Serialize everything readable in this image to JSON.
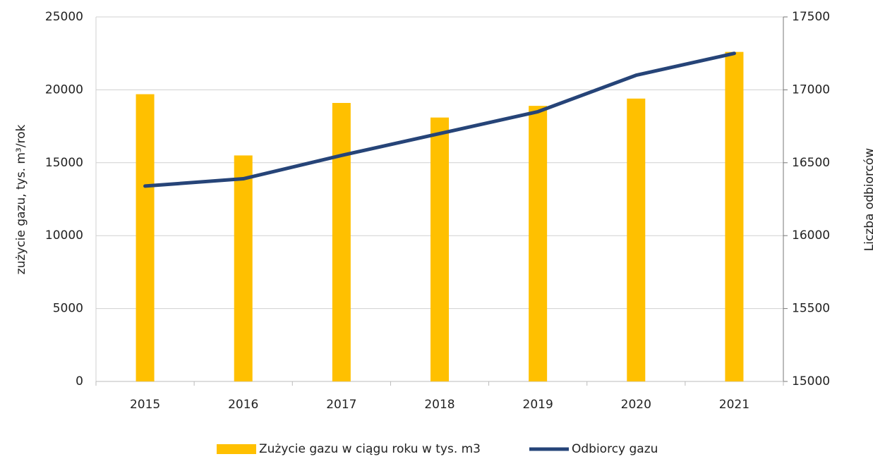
{
  "chart_data": {
    "type": "bar_line",
    "categories": [
      "2015",
      "2016",
      "2017",
      "2018",
      "2019",
      "2020",
      "2021"
    ],
    "series": [
      {
        "name": "Zużycie gazu w ciągu roku w tys. m3",
        "color": "#ffc000",
        "type": "bar",
        "values": [
          19700,
          15500,
          19100,
          18100,
          18900,
          19400,
          22600
        ]
      },
      {
        "name": "Odbiorcy gazu",
        "color": "#264478",
        "type": "line",
        "axis": "y2",
        "values": [
          16340,
          16390,
          16550,
          16700,
          16850,
          17100,
          17250
        ]
      }
    ],
    "ylabel": "zużycie gazu, tys. m³/rok",
    "y2label": "Liczba odbiorców",
    "ylim": [
      0,
      25000
    ],
    "yticks": [
      0,
      5000,
      10000,
      15000,
      20000,
      25000
    ],
    "y2lim": [
      15000,
      17500
    ],
    "y2ticks": [
      15000,
      15500,
      16000,
      16500,
      17000,
      17500
    ],
    "grid": true,
    "legend": "bottom"
  }
}
